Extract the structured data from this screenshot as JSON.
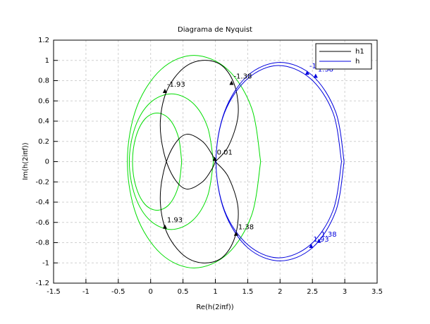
{
  "chart_data": {
    "type": "line",
    "title": "Diagrama de Nyquist",
    "x_label": "Re(h(2iπf))",
    "y_label": "Im(h(2iπf))",
    "xlim": [
      -1.5,
      3.5
    ],
    "ylim": [
      -1.2,
      1.2
    ],
    "xticks": [
      -1.5,
      -1,
      -0.5,
      0,
      0.5,
      1,
      1.5,
      2,
      2.5,
      3,
      3.5
    ],
    "yticks": [
      -1.2,
      -1,
      -0.8,
      -0.6,
      -0.4,
      -0.2,
      0,
      0.2,
      0.4,
      0.6,
      0.8,
      1,
      1.2
    ],
    "grid": true,
    "legend": "upper right",
    "series": [
      {
        "color": "#00dd00",
        "x": [
          1.7,
          1.56,
          1.19,
          0.67,
          0.16,
          -0.22,
          -0.36,
          -0.22,
          0.16,
          0.67,
          1.19,
          1.56,
          1.7
        ],
        "y": [
          0,
          0.53,
          0.91,
          1.05,
          0.91,
          0.53,
          0,
          -0.53,
          -0.91,
          -1.05,
          -0.91,
          -0.53,
          0
        ]
      },
      {
        "color": "#00dd00",
        "x": [
          0.97,
          0.88,
          0.65,
          0.32,
          -0.01,
          -0.24,
          -0.33,
          -0.24,
          -0.01,
          0.32,
          0.65,
          0.88,
          0.97
        ],
        "y": [
          0,
          0.34,
          0.58,
          0.67,
          0.58,
          0.34,
          0,
          -0.34,
          -0.58,
          -0.67,
          -0.58,
          -0.34,
          0
        ]
      },
      {
        "color": "#00dd00",
        "x": [
          0.48,
          0.43,
          0.29,
          0.1,
          -0.09,
          -0.23,
          -0.28,
          -0.23,
          -0.09,
          0.1,
          0.29,
          0.43,
          0.48
        ],
        "y": [
          0,
          0.24,
          0.42,
          0.48,
          0.42,
          0.24,
          0,
          -0.24,
          -0.42,
          -0.48,
          -0.42,
          -0.24,
          0
        ]
      },
      {
        "name": "h1",
        "color": "#000000",
        "x": [
          1,
          1.2,
          1.35,
          1.3,
          1.1,
          0.8,
          0.5,
          0.25,
          0.15,
          0.2,
          0.35,
          0.55,
          0.8,
          0.95,
          1,
          null,
          1,
          1.2,
          1.35,
          1.3,
          1.1,
          0.8,
          0.5,
          0.25,
          0.15,
          0.2,
          0.35,
          0.55,
          0.8,
          0.95,
          1
        ],
        "y": [
          0,
          0.15,
          0.45,
          0.75,
          0.95,
          1.0,
          0.92,
          0.7,
          0.4,
          0.1,
          -0.15,
          -0.27,
          -0.2,
          -0.07,
          0,
          null,
          0,
          -0.15,
          -0.45,
          -0.75,
          -0.95,
          -1.0,
          -0.92,
          -0.7,
          -0.4,
          -0.1,
          0.15,
          0.27,
          0.2,
          0.07,
          0
        ]
      },
      {
        "name": "h",
        "color": "#0000dd",
        "x": [
          2.99,
          2.86,
          2.5,
          2,
          1.5,
          1.14,
          1.01,
          1.14,
          1.5,
          2,
          2.5,
          2.86,
          2.99,
          null,
          2.95,
          2.82,
          2.47,
          1.98,
          1.5,
          1.14,
          1.01,
          1.14,
          1.5,
          1.98,
          2.47,
          2.82,
          2.95
        ],
        "y": [
          0,
          0.49,
          0.85,
          0.98,
          0.85,
          0.49,
          0,
          -0.49,
          -0.85,
          -0.98,
          -0.85,
          -0.49,
          0,
          null,
          0,
          0.48,
          0.82,
          0.95,
          0.82,
          0.48,
          0,
          -0.48,
          -0.82,
          -0.95,
          -0.82,
          -0.48,
          0
        ]
      }
    ],
    "annotations": [
      {
        "text": "-1.93",
        "x": 0.22,
        "y": 0.72,
        "color": "#000000"
      },
      {
        "text": "-1.38",
        "x": 1.25,
        "y": 0.8,
        "color": "#000000"
      },
      {
        "text": "0.01",
        "x": 0.99,
        "y": 0.05,
        "color": "#000000"
      },
      {
        "text": "1.93",
        "x": 0.22,
        "y": -0.62,
        "color": "#000000"
      },
      {
        "text": "1.38",
        "x": 1.32,
        "y": -0.69,
        "color": "#000000"
      },
      {
        "text": "-1.",
        "x": 2.42,
        "y": 0.9,
        "color": "#0000dd"
      },
      {
        "text": "1.38",
        "x": 2.55,
        "y": 0.87,
        "color": "#0000dd"
      },
      {
        "text": "1.93",
        "x": 2.48,
        "y": -0.81,
        "color": "#0000dd"
      },
      {
        "text": "1.38",
        "x": 2.6,
        "y": -0.76,
        "color": "#0000dd"
      }
    ]
  }
}
